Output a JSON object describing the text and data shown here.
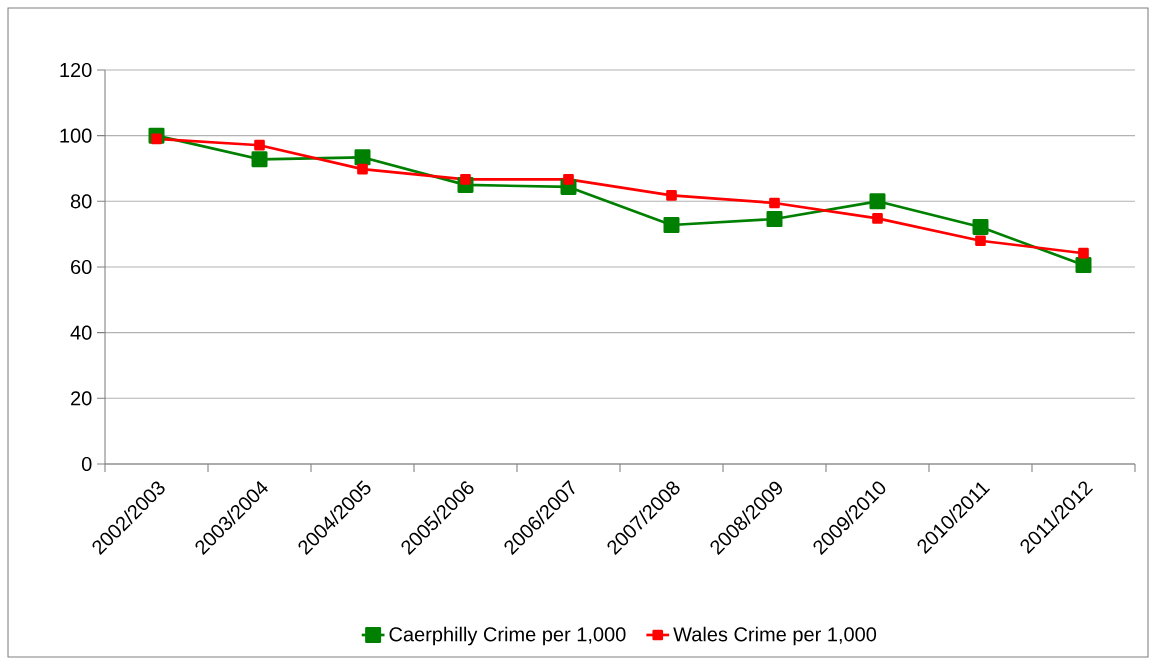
{
  "chart_data": {
    "type": "line",
    "categories": [
      "2002/2003",
      "2003/2004",
      "2004/2005",
      "2005/2006",
      "2006/2007",
      "2007/2008",
      "2008/2009",
      "2009/2010",
      "2010/2011",
      "2011/2012"
    ],
    "series": [
      {
        "name": "Caerphilly Crime per 1,000",
        "color": "#008000",
        "values": [
          100,
          92.8,
          93.4,
          85,
          84.4,
          72.8,
          74.6,
          80,
          72.2,
          60.6
        ]
      },
      {
        "name": "Wales Crime per 1,000",
        "color": "#ff0000",
        "values": [
          99,
          97.1,
          89.8,
          86.7,
          86.7,
          81.8,
          79.5,
          74.8,
          68,
          64.2
        ]
      }
    ],
    "ylim": [
      0,
      120
    ],
    "yticks": [
      0,
      20,
      40,
      60,
      80,
      100,
      120
    ],
    "grid": "y",
    "legend": "bottom",
    "marker": "square",
    "line_style": "solid"
  }
}
